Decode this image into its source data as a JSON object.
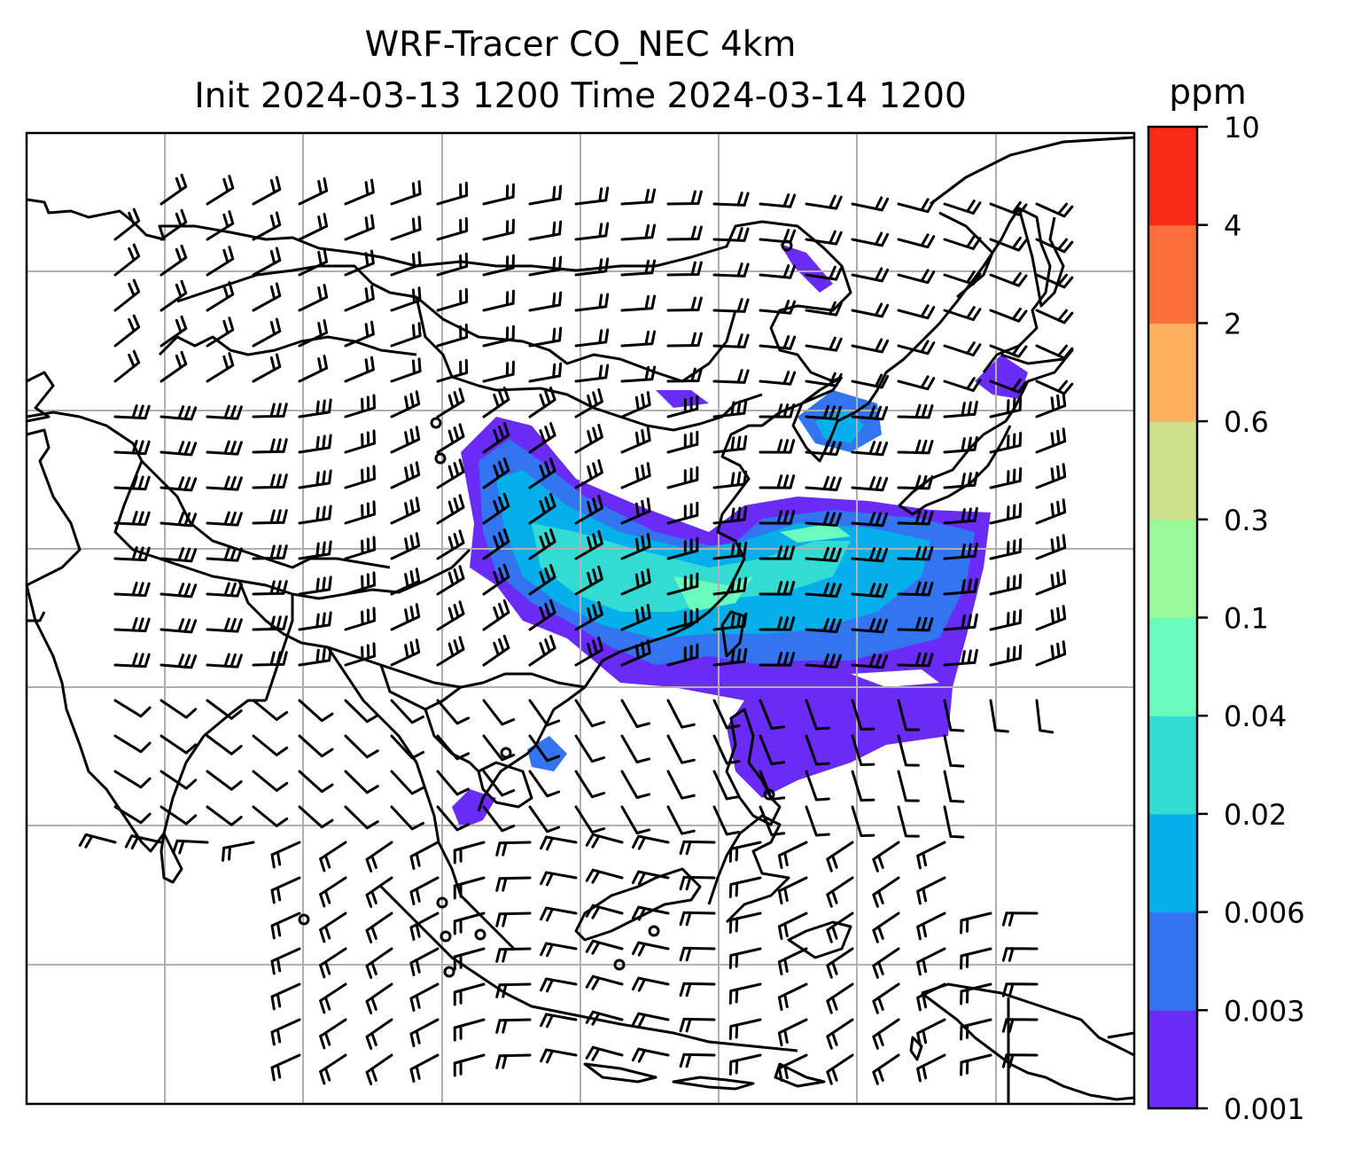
{
  "title_line1": "WRF-Tracer CO_NEC 4km",
  "title_line2": "Init 2024-03-13 1200 Time 2024-03-14 1200",
  "colorbar": {
    "units": "ppm",
    "levels": [
      "0.001",
      "0.003",
      "0.006",
      "0.02",
      "0.04",
      "0.1",
      "0.3",
      "0.6",
      "2",
      "4",
      "10"
    ],
    "colors": [
      "#6a2bf7",
      "#3374f0",
      "#05b0ea",
      "#33dcd3",
      "#6afcbd",
      "#99f99b",
      "#cde08b",
      "#fdb060",
      "#fd6f3a",
      "#fa2a18"
    ]
  },
  "map_style": {
    "grid_color": "#b0b0b0",
    "coast_color": "#000000",
    "barb_color": "#000000"
  }
}
